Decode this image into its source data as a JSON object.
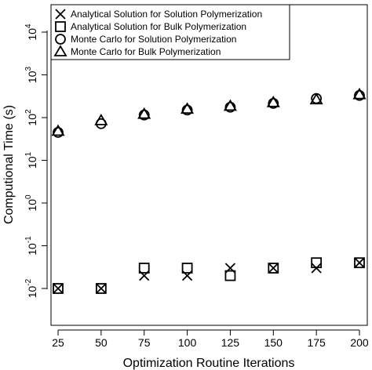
{
  "chart_data": {
    "type": "scatter",
    "title": "",
    "xlabel": "Optimization Routine Iterations",
    "ylabel": "Computional Time (s)",
    "xlim": [
      20,
      200
    ],
    "ylim_log10": [
      -2.75,
      4.75
    ],
    "y_scale": "log",
    "x_ticks": [
      25,
      50,
      75,
      100,
      125,
      150,
      175,
      200
    ],
    "x_tick_labels": [
      "25",
      "50",
      "75",
      "100",
      "125",
      "150",
      "175",
      "200"
    ],
    "y_ticks_exp": [
      -2,
      -1,
      0,
      1,
      2,
      3,
      4
    ],
    "y_tick_base": "10",
    "y_tick_exponents": [
      "-2",
      "-1",
      "0",
      "1",
      "2",
      "3",
      "4"
    ],
    "grid": false,
    "legend_position": "top-left",
    "x": [
      25,
      50,
      75,
      100,
      125,
      150,
      175,
      200
    ],
    "series": [
      {
        "name": "Analytical Solution for Solution Polymerization",
        "marker": "x",
        "values": [
          0.01,
          0.01,
          0.02,
          0.02,
          0.03,
          0.03,
          0.03,
          0.04
        ]
      },
      {
        "name": "Analytical Solution for Bulk Polymerization",
        "marker": "square",
        "values": [
          0.01,
          0.01,
          0.03,
          0.03,
          0.02,
          0.03,
          0.04,
          0.04
        ]
      },
      {
        "name": "Monte Carlo for Solution Polymerization",
        "marker": "circle",
        "values": [
          45,
          72,
          115,
          150,
          175,
          215,
          280,
          330
        ]
      },
      {
        "name": "Monte Carlo for Bulk Polymerization",
        "marker": "triangle",
        "values": [
          48,
          85,
          120,
          158,
          185,
          225,
          262,
          345
        ]
      }
    ]
  }
}
